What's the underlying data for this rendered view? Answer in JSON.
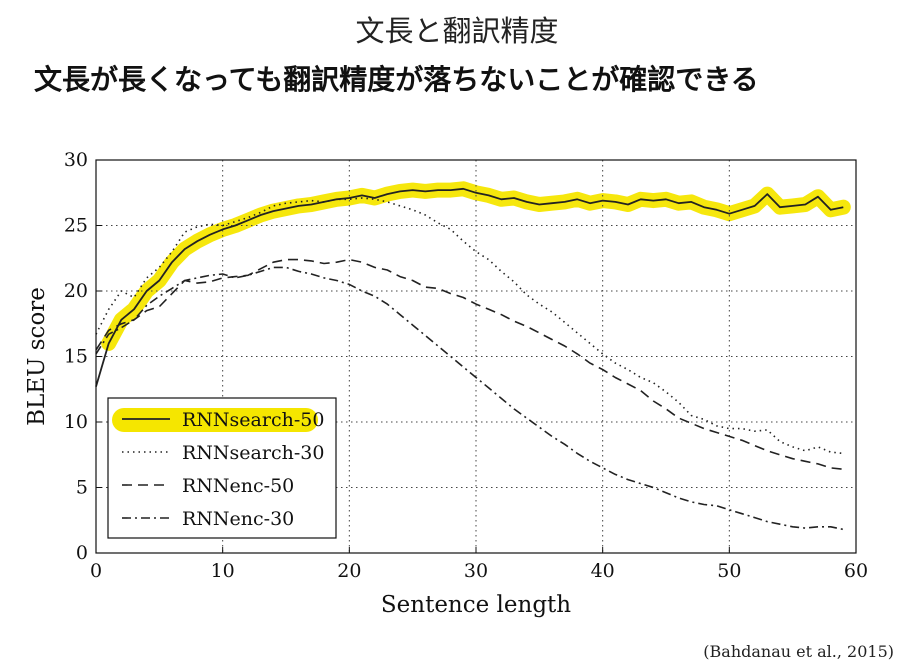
{
  "slide": {
    "title": "文長と翻訳精度",
    "subtitle": "文長が長くなっても翻訳精度が落ちないことが確認できる",
    "citation": "(Bahdanau et al., 2015)"
  },
  "chart_data": {
    "type": "line",
    "xlabel": "Sentence length",
    "ylabel": "BLEU score",
    "xlim": [
      0,
      60
    ],
    "ylim": [
      0,
      30
    ],
    "x_ticks": [
      0,
      10,
      20,
      30,
      40,
      50,
      60
    ],
    "y_ticks": [
      0,
      5,
      10,
      15,
      20,
      25,
      30
    ],
    "grid": true,
    "legend_position": "bottom-left",
    "highlight_color": "#f5e600",
    "series": [
      {
        "name": "RNNsearch-50",
        "style": "solid",
        "highlighted": true,
        "points": [
          [
            0,
            12.7
          ],
          [
            1,
            16.0
          ],
          [
            2,
            17.8
          ],
          [
            3,
            18.6
          ],
          [
            4,
            20.0
          ],
          [
            5,
            20.8
          ],
          [
            6,
            22.2
          ],
          [
            7,
            23.2
          ],
          [
            8,
            23.8
          ],
          [
            9,
            24.3
          ],
          [
            10,
            24.7
          ],
          [
            11,
            25.0
          ],
          [
            12,
            25.4
          ],
          [
            13,
            25.8
          ],
          [
            14,
            26.1
          ],
          [
            15,
            26.3
          ],
          [
            16,
            26.5
          ],
          [
            17,
            26.6
          ],
          [
            18,
            26.8
          ],
          [
            19,
            27.0
          ],
          [
            20,
            27.1
          ],
          [
            21,
            27.3
          ],
          [
            22,
            27.1
          ],
          [
            23,
            27.4
          ],
          [
            24,
            27.6
          ],
          [
            25,
            27.7
          ],
          [
            26,
            27.6
          ],
          [
            27,
            27.7
          ],
          [
            28,
            27.7
          ],
          [
            29,
            27.8
          ],
          [
            30,
            27.5
          ],
          [
            31,
            27.3
          ],
          [
            32,
            27.0
          ],
          [
            33,
            27.1
          ],
          [
            34,
            26.8
          ],
          [
            35,
            26.6
          ],
          [
            36,
            26.7
          ],
          [
            37,
            26.8
          ],
          [
            38,
            27.0
          ],
          [
            39,
            26.7
          ],
          [
            40,
            26.9
          ],
          [
            41,
            26.8
          ],
          [
            42,
            26.6
          ],
          [
            43,
            27.0
          ],
          [
            44,
            26.9
          ],
          [
            45,
            27.0
          ],
          [
            46,
            26.7
          ],
          [
            47,
            26.8
          ],
          [
            48,
            26.4
          ],
          [
            49,
            26.2
          ],
          [
            50,
            25.9
          ],
          [
            51,
            26.2
          ],
          [
            52,
            26.5
          ],
          [
            53,
            27.4
          ],
          [
            54,
            26.4
          ],
          [
            55,
            26.5
          ],
          [
            56,
            26.6
          ],
          [
            57,
            27.2
          ],
          [
            58,
            26.2
          ],
          [
            59,
            26.4
          ]
        ]
      },
      {
        "name": "RNNsearch-30",
        "style": "dotted",
        "highlighted": false,
        "points": [
          [
            0,
            16.7
          ],
          [
            1,
            18.6
          ],
          [
            2,
            20.0
          ],
          [
            3,
            19.5
          ],
          [
            4,
            21.0
          ],
          [
            5,
            21.8
          ],
          [
            6,
            23.0
          ],
          [
            7,
            24.5
          ],
          [
            8,
            24.9
          ],
          [
            9,
            25.1
          ],
          [
            10,
            25.0
          ],
          [
            11,
            25.3
          ],
          [
            12,
            25.6
          ],
          [
            13,
            26.0
          ],
          [
            14,
            26.5
          ],
          [
            15,
            26.7
          ],
          [
            16,
            26.8
          ],
          [
            17,
            26.9
          ],
          [
            18,
            26.8
          ],
          [
            19,
            27.0
          ],
          [
            20,
            27.0
          ],
          [
            21,
            27.1
          ],
          [
            22,
            27.0
          ],
          [
            23,
            26.8
          ],
          [
            24,
            26.5
          ],
          [
            25,
            26.2
          ],
          [
            26,
            25.8
          ],
          [
            27,
            25.2
          ],
          [
            28,
            24.7
          ],
          [
            29,
            23.8
          ],
          [
            30,
            23.0
          ],
          [
            31,
            22.4
          ],
          [
            32,
            21.5
          ],
          [
            33,
            20.7
          ],
          [
            34,
            19.7
          ],
          [
            35,
            19.0
          ],
          [
            36,
            18.4
          ],
          [
            37,
            17.6
          ],
          [
            38,
            16.8
          ],
          [
            39,
            16.0
          ],
          [
            40,
            15.2
          ],
          [
            41,
            14.5
          ],
          [
            42,
            14.0
          ],
          [
            43,
            13.4
          ],
          [
            44,
            13.0
          ],
          [
            45,
            12.3
          ],
          [
            46,
            11.5
          ],
          [
            47,
            10.5
          ],
          [
            48,
            10.2
          ],
          [
            49,
            9.7
          ],
          [
            50,
            9.5
          ],
          [
            51,
            9.5
          ],
          [
            52,
            9.3
          ],
          [
            53,
            9.4
          ],
          [
            54,
            8.5
          ],
          [
            55,
            8.1
          ],
          [
            56,
            7.8
          ],
          [
            57,
            8.1
          ],
          [
            58,
            7.7
          ],
          [
            59,
            7.6
          ]
        ]
      },
      {
        "name": "RNNenc-50",
        "style": "dashed",
        "highlighted": false,
        "points": [
          [
            0,
            15.5
          ],
          [
            1,
            17.0
          ],
          [
            2,
            17.5
          ],
          [
            3,
            17.8
          ],
          [
            4,
            18.5
          ],
          [
            5,
            18.8
          ],
          [
            6,
            19.8
          ],
          [
            7,
            20.8
          ],
          [
            8,
            20.6
          ],
          [
            9,
            20.7
          ],
          [
            10,
            21.0
          ],
          [
            11,
            21.1
          ],
          [
            12,
            21.2
          ],
          [
            13,
            21.7
          ],
          [
            14,
            22.2
          ],
          [
            15,
            22.4
          ],
          [
            16,
            22.4
          ],
          [
            17,
            22.3
          ],
          [
            18,
            22.1
          ],
          [
            19,
            22.2
          ],
          [
            20,
            22.4
          ],
          [
            21,
            22.2
          ],
          [
            22,
            21.8
          ],
          [
            23,
            21.6
          ],
          [
            24,
            21.1
          ],
          [
            25,
            20.8
          ],
          [
            26,
            20.3
          ],
          [
            27,
            20.2
          ],
          [
            28,
            19.8
          ],
          [
            29,
            19.5
          ],
          [
            30,
            19.0
          ],
          [
            31,
            18.6
          ],
          [
            32,
            18.2
          ],
          [
            33,
            17.7
          ],
          [
            34,
            17.3
          ],
          [
            35,
            16.8
          ],
          [
            36,
            16.3
          ],
          [
            37,
            15.8
          ],
          [
            38,
            15.2
          ],
          [
            39,
            14.5
          ],
          [
            40,
            14.0
          ],
          [
            41,
            13.4
          ],
          [
            42,
            12.9
          ],
          [
            43,
            12.4
          ],
          [
            44,
            11.6
          ],
          [
            45,
            11.0
          ],
          [
            46,
            10.3
          ],
          [
            47,
            9.9
          ],
          [
            48,
            9.5
          ],
          [
            49,
            9.2
          ],
          [
            50,
            8.9
          ],
          [
            51,
            8.6
          ],
          [
            52,
            8.2
          ],
          [
            53,
            7.8
          ],
          [
            54,
            7.5
          ],
          [
            55,
            7.2
          ],
          [
            56,
            7.0
          ],
          [
            57,
            6.8
          ],
          [
            58,
            6.5
          ],
          [
            59,
            6.4
          ]
        ]
      },
      {
        "name": "RNNenc-30",
        "style": "dashdot",
        "highlighted": false,
        "points": [
          [
            0,
            15.2
          ],
          [
            1,
            16.7
          ],
          [
            2,
            17.2
          ],
          [
            3,
            17.8
          ],
          [
            4,
            18.9
          ],
          [
            5,
            19.6
          ],
          [
            6,
            20.2
          ],
          [
            7,
            20.8
          ],
          [
            8,
            21.0
          ],
          [
            9,
            21.2
          ],
          [
            10,
            21.3
          ],
          [
            11,
            21.0
          ],
          [
            12,
            21.2
          ],
          [
            13,
            21.5
          ],
          [
            14,
            21.8
          ],
          [
            15,
            21.8
          ],
          [
            16,
            21.5
          ],
          [
            17,
            21.3
          ],
          [
            18,
            21.0
          ],
          [
            19,
            20.8
          ],
          [
            20,
            20.5
          ],
          [
            21,
            20.0
          ],
          [
            22,
            19.6
          ],
          [
            23,
            19.0
          ],
          [
            24,
            18.2
          ],
          [
            25,
            17.4
          ],
          [
            26,
            16.6
          ],
          [
            27,
            15.8
          ],
          [
            28,
            15.0
          ],
          [
            29,
            14.2
          ],
          [
            30,
            13.4
          ],
          [
            31,
            12.6
          ],
          [
            32,
            11.8
          ],
          [
            33,
            11.0
          ],
          [
            34,
            10.3
          ],
          [
            35,
            9.6
          ],
          [
            36,
            8.9
          ],
          [
            37,
            8.3
          ],
          [
            38,
            7.6
          ],
          [
            39,
            7.0
          ],
          [
            40,
            6.5
          ],
          [
            41,
            6.0
          ],
          [
            42,
            5.6
          ],
          [
            43,
            5.3
          ],
          [
            44,
            5.0
          ],
          [
            45,
            4.6
          ],
          [
            46,
            4.2
          ],
          [
            47,
            3.9
          ],
          [
            48,
            3.7
          ],
          [
            49,
            3.6
          ],
          [
            50,
            3.3
          ],
          [
            51,
            3.0
          ],
          [
            52,
            2.7
          ],
          [
            53,
            2.4
          ],
          [
            54,
            2.2
          ],
          [
            55,
            2.0
          ],
          [
            56,
            1.9
          ],
          [
            57,
            2.0
          ],
          [
            58,
            2.0
          ],
          [
            59,
            1.8
          ]
        ]
      }
    ]
  }
}
